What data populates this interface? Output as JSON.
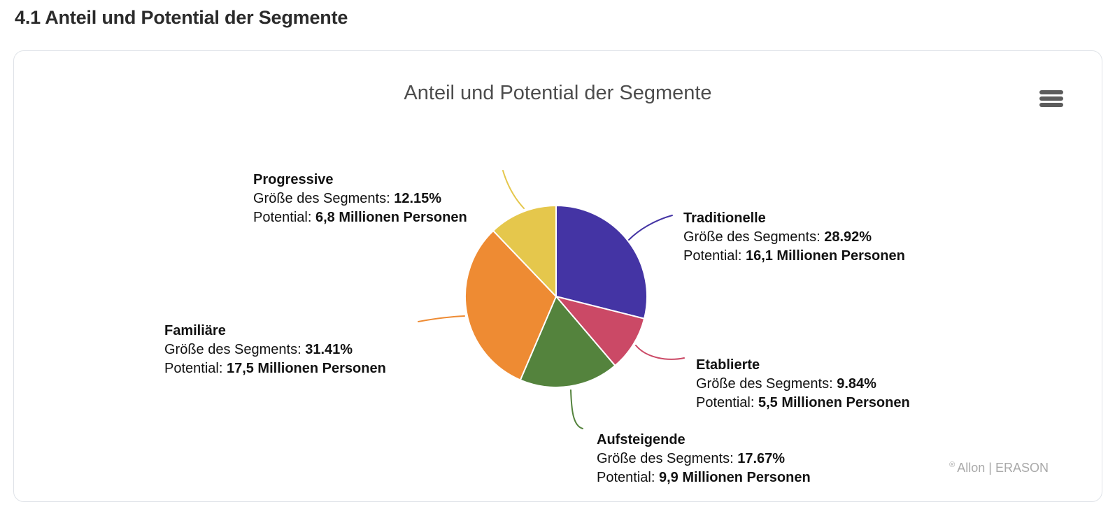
{
  "page": {
    "heading": "4.1 Anteil und Potential der Segmente"
  },
  "chart": {
    "title": "Anteil und Potential der Segmente",
    "menu_icon": "hamburger-menu-icon",
    "credits_mark": "®",
    "credits_text": "Allon | ERASON"
  },
  "chart_data": {
    "type": "pie",
    "title": "Anteil und Potential der Segmente",
    "start_angle_deg": 0,
    "direction": "clockwise",
    "legend_position": "none",
    "label_format": {
      "size_label": "Größe des Segments: ",
      "potential_label": "Potential: "
    },
    "segments": [
      {
        "name": "Traditionelle",
        "percent": 28.92,
        "percent_text": "28.92%",
        "potential": "16,1 Millionen Personen",
        "color": "#4434a4"
      },
      {
        "name": "Etablierte",
        "percent": 9.84,
        "percent_text": "9.84%",
        "potential": "5,5 Millionen Personen",
        "color": "#cb4966"
      },
      {
        "name": "Aufsteigende",
        "percent": 17.67,
        "percent_text": "17.67%",
        "potential": "9,9 Millionen Personen",
        "color": "#54833d"
      },
      {
        "name": "Familiäre",
        "percent": 31.41,
        "percent_text": "31.41%",
        "potential": "17,5 Millionen Personen",
        "color": "#ee8b33"
      },
      {
        "name": "Progressive",
        "percent": 12.15,
        "percent_text": "12.15%",
        "potential": "6,8 Millionen Personen",
        "color": "#e5c74c"
      }
    ]
  }
}
